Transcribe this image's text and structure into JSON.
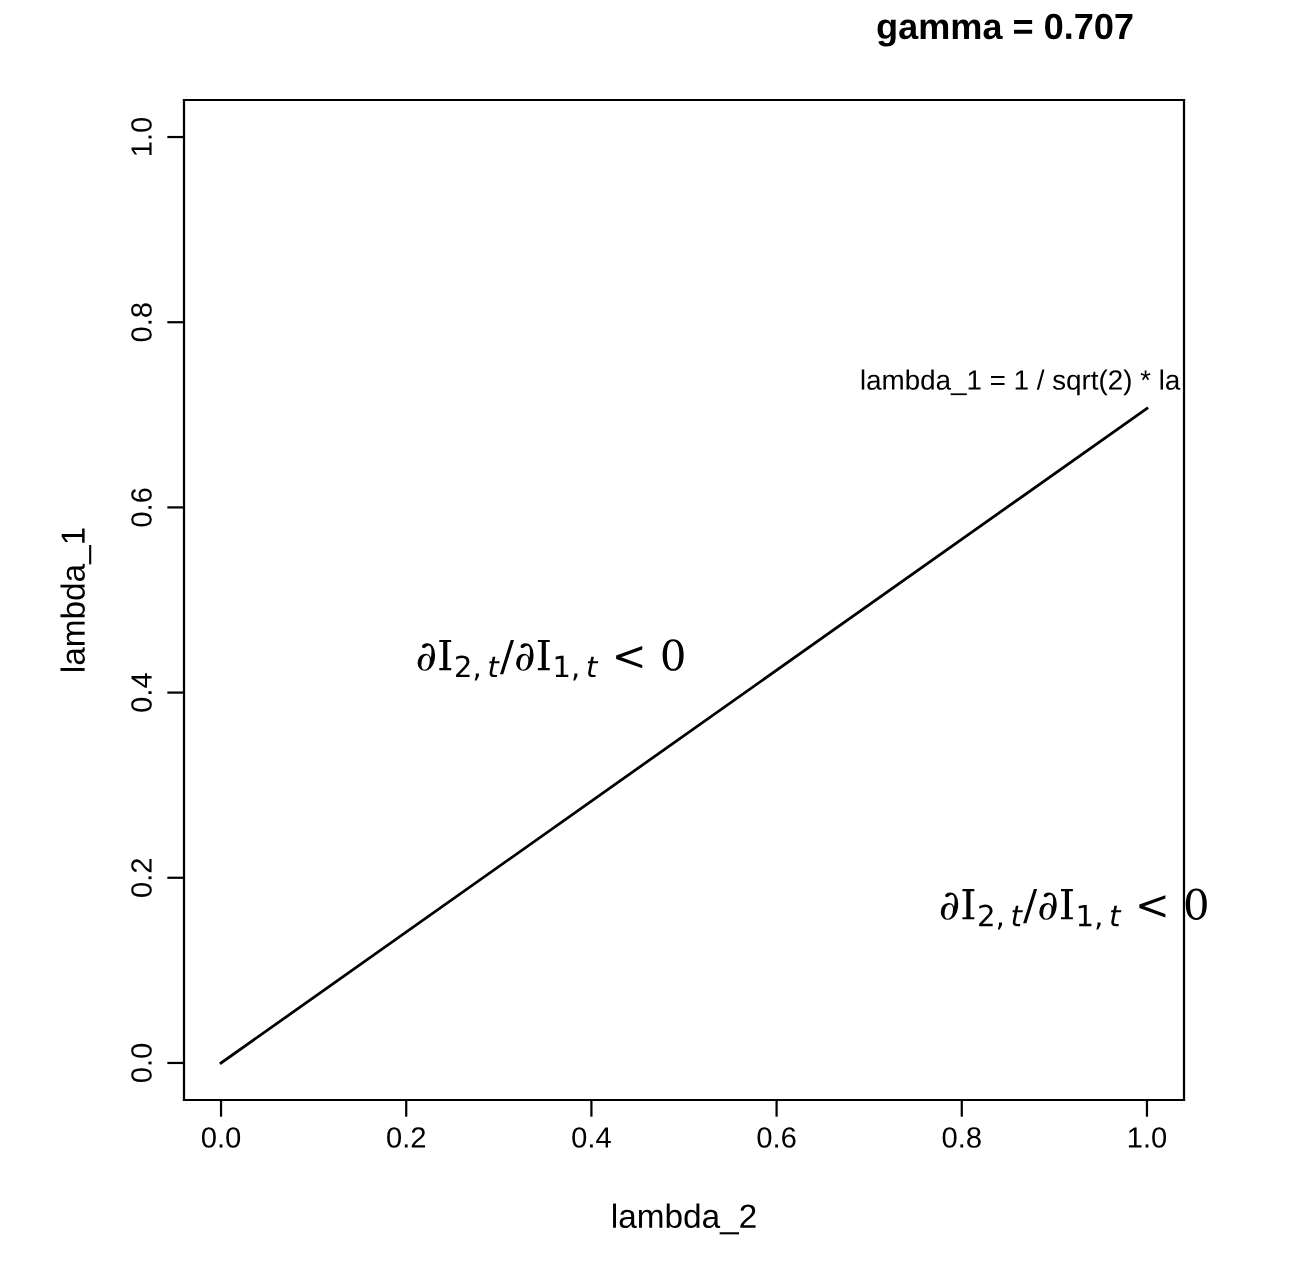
{
  "chart_data": {
    "type": "line",
    "title": "gamma = 0.707",
    "xlabel": "lambda_2",
    "ylabel": "lambda_1",
    "x": [
      0,
      1
    ],
    "series": [
      {
        "color": "#000000",
        "values": [
          0,
          0.707
        ]
      }
    ],
    "xlim": [
      -0.04,
      1.04
    ],
    "ylim": [
      -0.04,
      1.04
    ],
    "xticks": [
      {
        "value": 0,
        "label": "0.0"
      },
      0.2,
      0.4,
      0.6,
      0.8,
      {
        "value": 1,
        "label": "1.0"
      }
    ],
    "yticks": [
      {
        "value": 0,
        "label": "0.0"
      },
      0.2,
      0.4,
      0.6,
      0.8,
      {
        "value": 1,
        "label": "1.0"
      }
    ],
    "grid": false,
    "legend": false,
    "marker": "none",
    "line_style": "solid",
    "annotations": [
      "lambda_1 = 1 / sqrt(2) * la",
      "∂I$_{2,t}$/∂I$_{1,t}$ < 0",
      "∂I$_{2,t}$/∂I$_{1,t}$ < 0"
    ]
  }
}
